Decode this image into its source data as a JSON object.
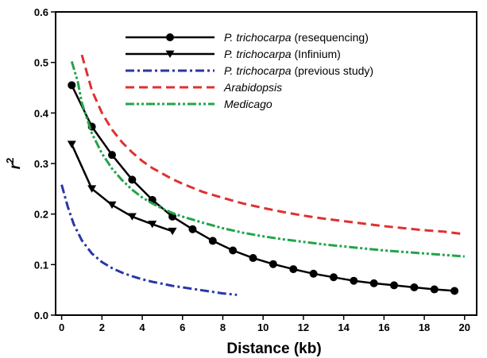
{
  "chart_data": {
    "type": "line",
    "title": "",
    "xlabel": "Distance (kb)",
    "ylabel_base": "r",
    "ylabel_sup": "2",
    "xlim": [
      -0.3,
      20.6
    ],
    "ylim": [
      0,
      0.6
    ],
    "xticks": [
      "0",
      "2",
      "4",
      "6",
      "8",
      "10",
      "12",
      "14",
      "16",
      "18",
      "20"
    ],
    "xtick_values": [
      0,
      2,
      4,
      6,
      8,
      10,
      12,
      14,
      16,
      18,
      20
    ],
    "yticks": [
      "0.0",
      "0.1",
      "0.2",
      "0.3",
      "0.4",
      "0.5",
      "0.6"
    ],
    "ytick_values": [
      0,
      0.1,
      0.2,
      0.3,
      0.4,
      0.5,
      0.6
    ],
    "legend_position": "top-right",
    "series": [
      {
        "name_italic": "P. trichocarpa",
        "name_rest": " (resequencing)",
        "color": "#000000",
        "style": "solid",
        "marker": "circle",
        "x": [
          0.5,
          1.5,
          2.5,
          3.5,
          4.5,
          5.5,
          6.5,
          7.5,
          8.5,
          9.5,
          10.5,
          11.5,
          12.5,
          13.5,
          14.5,
          15.5,
          16.5,
          17.5,
          18.5,
          19.5
        ],
        "y": [
          0.455,
          0.373,
          0.317,
          0.268,
          0.228,
          0.195,
          0.17,
          0.147,
          0.128,
          0.113,
          0.101,
          0.091,
          0.082,
          0.075,
          0.068,
          0.063,
          0.059,
          0.055,
          0.051,
          0.048
        ]
      },
      {
        "name_italic": "P. trichocarpa",
        "name_rest": " (Infinium)",
        "color": "#000000",
        "style": "solid",
        "marker": "triangle-down",
        "x": [
          0.5,
          1.5,
          2.5,
          3.5,
          4.5,
          5.5
        ],
        "y": [
          0.338,
          0.25,
          0.218,
          0.195,
          0.18,
          0.166
        ]
      },
      {
        "name_italic": "P. trichocarpa",
        "name_rest": " (previous study)",
        "color": "#2a36a6",
        "style": "dashdot",
        "marker": "none",
        "x": [
          0.0,
          0.3,
          0.6,
          1.0,
          1.5,
          2.0,
          2.5,
          3.0,
          3.5,
          4.0,
          4.5,
          5.0,
          5.5,
          6.0,
          6.5,
          7.0,
          7.5,
          8.0,
          8.5,
          8.7
        ],
        "y": [
          0.258,
          0.215,
          0.18,
          0.148,
          0.122,
          0.105,
          0.093,
          0.084,
          0.077,
          0.071,
          0.066,
          0.062,
          0.058,
          0.055,
          0.052,
          0.049,
          0.046,
          0.043,
          0.041,
          0.04
        ]
      },
      {
        "name_italic": "Arabidopsis",
        "name_rest": "",
        "color": "#e03030",
        "style": "dashed",
        "marker": "none",
        "x": [
          1.0,
          1.5,
          2.0,
          2.5,
          3.0,
          3.5,
          4.0,
          4.5,
          5.0,
          5.5,
          6.0,
          7.0,
          8.0,
          9.0,
          10.0,
          11.0,
          12.0,
          13.0,
          14.0,
          15.0,
          16.0,
          17.0,
          18.0,
          19.0,
          20.0
        ],
        "y": [
          0.515,
          0.445,
          0.4,
          0.367,
          0.342,
          0.322,
          0.305,
          0.291,
          0.28,
          0.269,
          0.26,
          0.244,
          0.232,
          0.221,
          0.212,
          0.204,
          0.197,
          0.191,
          0.186,
          0.181,
          0.176,
          0.172,
          0.168,
          0.165,
          0.16
        ]
      },
      {
        "name_italic": "Medicago",
        "name_rest": "",
        "color": "#22a44a",
        "style": "dashdotdot",
        "marker": "none",
        "x": [
          0.5,
          0.8,
          1.0,
          1.5,
          2.0,
          2.5,
          3.0,
          3.5,
          4.0,
          4.5,
          5.0,
          5.5,
          6.0,
          7.0,
          8.0,
          9.0,
          10.0,
          11.0,
          12.0,
          13.0,
          14.0,
          15.0,
          16.0,
          17.0,
          18.0,
          19.0,
          20.0
        ],
        "y": [
          0.502,
          0.462,
          0.42,
          0.36,
          0.32,
          0.29,
          0.267,
          0.248,
          0.233,
          0.221,
          0.211,
          0.202,
          0.195,
          0.183,
          0.172,
          0.163,
          0.156,
          0.15,
          0.145,
          0.14,
          0.136,
          0.132,
          0.128,
          0.125,
          0.122,
          0.119,
          0.116
        ]
      }
    ]
  }
}
